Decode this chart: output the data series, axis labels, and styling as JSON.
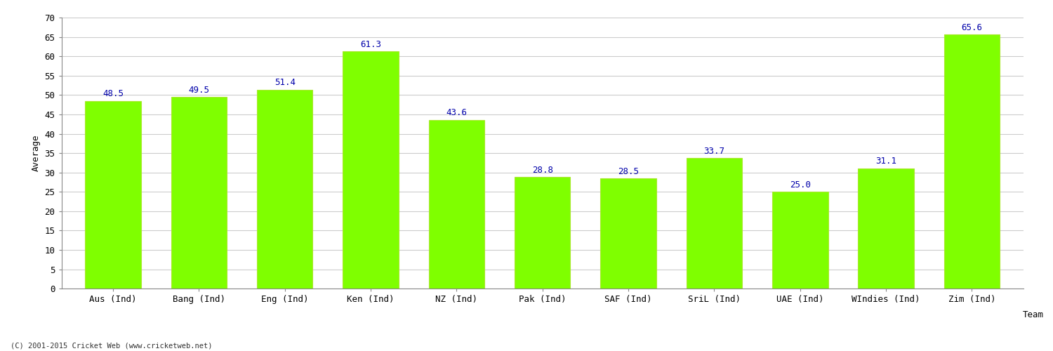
{
  "categories": [
    "Aus (Ind)",
    "Bang (Ind)",
    "Eng (Ind)",
    "Ken (Ind)",
    "NZ (Ind)",
    "Pak (Ind)",
    "SAF (Ind)",
    "SriL (Ind)",
    "UAE (Ind)",
    "WIndies (Ind)",
    "Zim (Ind)"
  ],
  "values": [
    48.5,
    49.5,
    51.4,
    61.3,
    43.6,
    28.8,
    28.5,
    33.7,
    25.0,
    31.1,
    65.6
  ],
  "bar_color": "#7fff00",
  "bar_edge_color": "#aae830",
  "label_color": "#0000aa",
  "xlabel": "Team",
  "ylabel": "Average",
  "ylim": [
    0,
    70
  ],
  "yticks": [
    0,
    5,
    10,
    15,
    20,
    25,
    30,
    35,
    40,
    45,
    50,
    55,
    60,
    65,
    70
  ],
  "grid_color": "#cccccc",
  "background_color": "#ffffff",
  "footer_text": "(C) 2001-2015 Cricket Web (www.cricketweb.net)",
  "label_fontsize": 9,
  "tick_fontsize": 9,
  "axis_label_fontsize": 9,
  "bar_width": 0.65
}
